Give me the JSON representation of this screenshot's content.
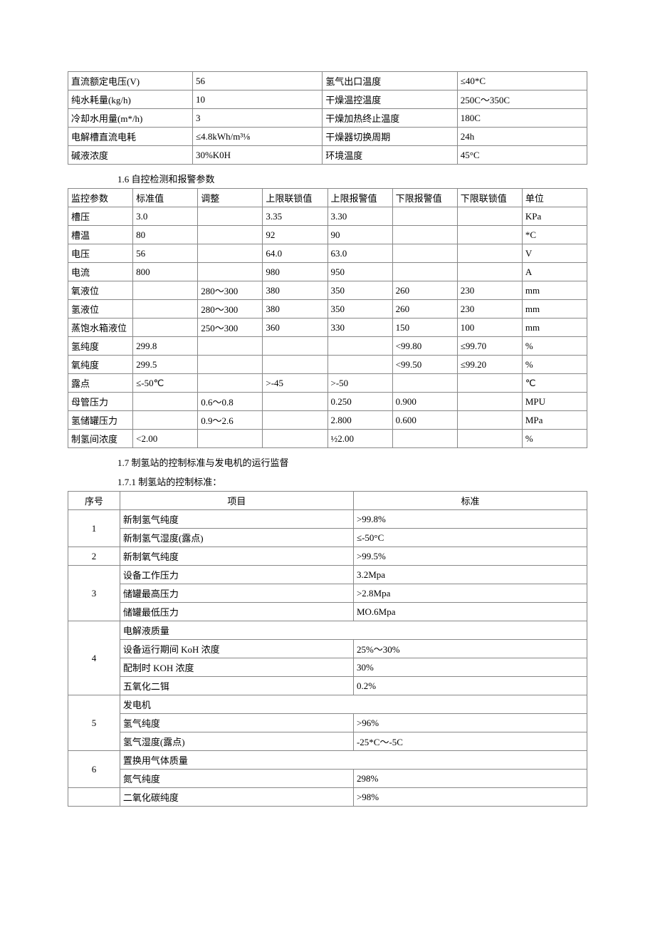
{
  "table1": {
    "rows": [
      [
        "直流额定电压(V)",
        "56",
        "氢气出口温度",
        "≤40*C"
      ],
      [
        "纯水耗量(kg/h)",
        "10",
        "干燥温控温度",
        "250C～350C"
      ],
      [
        "冷却水用量(m*/h)",
        "3",
        "干燥加热终止温度",
        "180C"
      ],
      [
        "电解槽直流电耗",
        "≤4.8kWh/m³⅛",
        "干燥器切换周期",
        "24h"
      ],
      [
        "碱液浓度",
        "30%K0H",
        "环境温度",
        "45°C"
      ]
    ],
    "col_widths": [
      "24%",
      "25%",
      "26%",
      "25%"
    ]
  },
  "heading16": "1.6 自控检测和报警参数",
  "table2": {
    "headers": [
      "监控参数",
      "标准值",
      "调整",
      "上限联锁值",
      "上限报警值",
      "下限报警值",
      "下限联锁值",
      "单位"
    ],
    "rows": [
      [
        "槽压",
        "3.0",
        "",
        "3.35",
        "3.30",
        "",
        "",
        "KPa"
      ],
      [
        "槽温",
        "80",
        "",
        "92",
        "90",
        "",
        "",
        "*C"
      ],
      [
        "电压",
        "56",
        "",
        "64.0",
        "63.0",
        "",
        "",
        "V"
      ],
      [
        "电流",
        "800",
        "",
        "980",
        "950",
        "",
        "",
        "A"
      ],
      [
        "氧液位",
        "",
        "280～300",
        "380",
        "350",
        "260",
        "230",
        "mm"
      ],
      [
        "氢液位",
        "",
        "280～300",
        "380",
        "350",
        "260",
        "230",
        "mm"
      ],
      [
        "蒸饱水箱液位",
        "",
        "250～300",
        "360",
        "330",
        "150",
        "100",
        "mm"
      ],
      [
        "氢纯度",
        "299.8",
        "",
        "",
        "",
        "<99.80",
        "≤99.70",
        "%"
      ],
      [
        "氧纯度",
        "299.5",
        "",
        "",
        "",
        "<99.50",
        "≤99.20",
        "%"
      ],
      [
        "露点",
        "≤-50℃",
        "",
        ">-45",
        ">-50",
        "",
        "",
        "℃"
      ],
      [
        "母管压力",
        "",
        "0.6～0.8",
        "",
        "0.250",
        "0.900",
        "",
        "MPU"
      ],
      [
        "氢储罐压力",
        "",
        "0.9～2.6",
        "",
        "2.800",
        "0.600",
        "",
        "MPa"
      ],
      [
        "制氢间浓度",
        "<2.00",
        "",
        "",
        "½2.00",
        "",
        "",
        "%"
      ]
    ]
  },
  "heading17": "1.7 制氢站的控制标准与发电机的运行监督",
  "heading171": "1.7.1 制氢站的控制标准：",
  "table3": {
    "headers": [
      "序号",
      "项目",
      "标准"
    ],
    "groups": [
      {
        "seq": "1",
        "rows": [
          [
            "新制氢气纯度",
            ">99.8%"
          ],
          [
            "新制氢气湿度(露点)",
            "≤-50°C"
          ]
        ]
      },
      {
        "seq": "2",
        "rows": [
          [
            "新制氧气纯度",
            ">99.5%"
          ]
        ]
      },
      {
        "seq": "3",
        "rows": [
          [
            "设备工作压力",
            "3.2Mpa"
          ],
          [
            "储罐最高压力",
            ">2.8Mpa"
          ],
          [
            "储罐最低压力",
            "MO.6Mpa"
          ]
        ]
      },
      {
        "seq": "4",
        "rows_span": [
          {
            "item": "电解液质量",
            "std": null,
            "span": true
          },
          {
            "item": "设备运行期间 KoH 浓度",
            "std": "25%～30%"
          },
          {
            "item": "配制时 KOH 浓度",
            "std": "30%"
          },
          {
            "item": "五氧化二铒",
            "std": "0.2%"
          }
        ]
      },
      {
        "seq": "5",
        "rows_span": [
          {
            "item": "发电机",
            "std": null,
            "span": true
          },
          {
            "item": "氢气纯度",
            "std": ">96%"
          },
          {
            "item": "氢气湿度(露点)",
            "std": "-25*C～-5C"
          }
        ]
      },
      {
        "seq": "6",
        "rows_span": [
          {
            "item": "置换用气体质量",
            "std": null,
            "span": true
          },
          {
            "item": "氮气纯度",
            "std": "298%"
          }
        ]
      },
      {
        "seq": "",
        "rows": [
          [
            "二氧化碳纯度",
            ">98%"
          ]
        ]
      }
    ]
  }
}
